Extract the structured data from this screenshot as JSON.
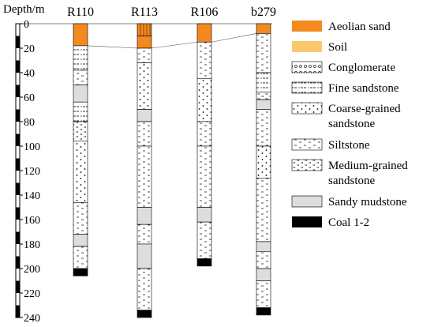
{
  "depth_axis": {
    "label": "Depth/m",
    "ticks": [
      0,
      20,
      40,
      60,
      80,
      100,
      120,
      140,
      160,
      180,
      200,
      220,
      240
    ],
    "range": [
      0,
      240
    ]
  },
  "boreholes": [
    {
      "name": "R110",
      "layers": [
        {
          "lith": "aeolian",
          "top": 0,
          "bottom": 18
        },
        {
          "lith": "fine",
          "top": 18,
          "bottom": 38
        },
        {
          "lith": "siltstone",
          "top": 38,
          "bottom": 50
        },
        {
          "lith": "mudstone",
          "top": 50,
          "bottom": 64
        },
        {
          "lith": "fine",
          "top": 64,
          "bottom": 80
        },
        {
          "lith": "medium",
          "top": 80,
          "bottom": 96
        },
        {
          "lith": "coarse",
          "top": 96,
          "bottom": 146
        },
        {
          "lith": "siltstone",
          "top": 146,
          "bottom": 172
        },
        {
          "lith": "mudstone",
          "top": 172,
          "bottom": 182
        },
        {
          "lith": "siltstone",
          "top": 182,
          "bottom": 200
        },
        {
          "lith": "coal",
          "top": 200,
          "bottom": 206
        }
      ]
    },
    {
      "name": "R113",
      "layers": [
        {
          "lith": "soil",
          "top": 0,
          "bottom": 10
        },
        {
          "lith": "aeolian",
          "top": 10,
          "bottom": 20
        },
        {
          "lith": "siltstone",
          "top": 20,
          "bottom": 32
        },
        {
          "lith": "coarse",
          "top": 32,
          "bottom": 70
        },
        {
          "lith": "mudstone",
          "top": 70,
          "bottom": 80
        },
        {
          "lith": "siltstone",
          "top": 80,
          "bottom": 100
        },
        {
          "lith": "siltstone",
          "top": 100,
          "bottom": 150
        },
        {
          "lith": "mudstone",
          "top": 150,
          "bottom": 164
        },
        {
          "lith": "siltstone",
          "top": 164,
          "bottom": 180
        },
        {
          "lith": "mudstone",
          "top": 180,
          "bottom": 200
        },
        {
          "lith": "siltstone",
          "top": 200,
          "bottom": 234
        },
        {
          "lith": "coal",
          "top": 234,
          "bottom": 240
        }
      ]
    },
    {
      "name": "R106",
      "layers": [
        {
          "lith": "aeolian",
          "top": 0,
          "bottom": 15
        },
        {
          "lith": "siltstone",
          "top": 15,
          "bottom": 45
        },
        {
          "lith": "coarse",
          "top": 45,
          "bottom": 80
        },
        {
          "lith": "siltstone",
          "top": 80,
          "bottom": 100
        },
        {
          "lith": "siltstone",
          "top": 100,
          "bottom": 150
        },
        {
          "lith": "mudstone",
          "top": 150,
          "bottom": 162
        },
        {
          "lith": "siltstone",
          "top": 162,
          "bottom": 192
        },
        {
          "lith": "coal",
          "top": 192,
          "bottom": 198
        }
      ]
    },
    {
      "name": "b279",
      "layers": [
        {
          "lith": "aeolian",
          "top": 0,
          "bottom": 8
        },
        {
          "lith": "siltstone",
          "top": 8,
          "bottom": 40
        },
        {
          "lith": "fine",
          "top": 40,
          "bottom": 56
        },
        {
          "lith": "medium",
          "top": 56,
          "bottom": 62
        },
        {
          "lith": "mudstone",
          "top": 62,
          "bottom": 70
        },
        {
          "lith": "siltstone",
          "top": 70,
          "bottom": 100
        },
        {
          "lith": "coarse",
          "top": 100,
          "bottom": 126
        },
        {
          "lith": "siltstone",
          "top": 126,
          "bottom": 178
        },
        {
          "lith": "mudstone",
          "top": 178,
          "bottom": 186
        },
        {
          "lith": "siltstone",
          "top": 186,
          "bottom": 200
        },
        {
          "lith": "mudstone",
          "top": 200,
          "bottom": 210
        },
        {
          "lith": "siltstone",
          "top": 210,
          "bottom": 232
        },
        {
          "lith": "coal",
          "top": 232,
          "bottom": 238
        }
      ]
    }
  ],
  "legend": [
    {
      "key": "aeolian",
      "label": "Aeolian sand",
      "color": "#f4891f"
    },
    {
      "key": "soil",
      "label": "Soil",
      "color": "#fbc96b"
    },
    {
      "key": "conglomerate",
      "label": "Conglomerate"
    },
    {
      "key": "fine",
      "label": "Fine sandstone"
    },
    {
      "key": "coarse",
      "label": "Coarse-grained sandstone",
      "lines": [
        "Coarse-grained",
        "sandstone"
      ]
    },
    {
      "key": "siltstone",
      "label": "Siltstone"
    },
    {
      "key": "medium",
      "label": "Medium-grained sandstone",
      "lines": [
        "Medium-grained",
        "sandstone"
      ]
    },
    {
      "key": "mudstone",
      "label": "Sandy mudstone"
    },
    {
      "key": "coal",
      "label": "Coal 1-2",
      "color": "#000000"
    }
  ]
}
